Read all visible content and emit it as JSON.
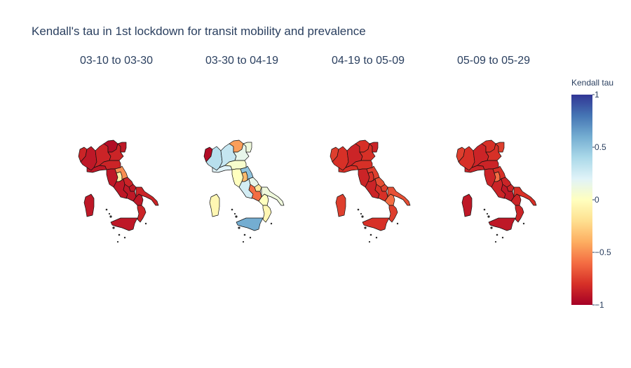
{
  "chart_data": {
    "type": "choropleth",
    "title": "Kendall's tau in 1st lockdown for transit mobility and prevalence",
    "panels": [
      {
        "label": "03-10 to 03-30",
        "regions": {
          "val_aosta": -0.85,
          "piedmont": -0.9,
          "liguria": -0.9,
          "lombardy": -0.85,
          "trentino": -0.95,
          "veneto": -0.85,
          "friuli": -0.9,
          "emilia": -0.85,
          "tuscany": -0.9,
          "umbria": -0.1,
          "marche": -0.5,
          "lazio": -0.9,
          "abruzzo": -0.85,
          "molise": -0.9,
          "campania": -0.9,
          "apulia": -0.85,
          "basilicata": -0.9,
          "calabria": -0.85,
          "sicily": -0.9,
          "sardinia": -0.9
        }
      },
      {
        "label": "03-30 to 04-19",
        "regions": {
          "val_aosta": -0.95,
          "piedmont": 0.35,
          "liguria": 0.2,
          "lombardy": 0.3,
          "trentino": -0.45,
          "veneto": 0.15,
          "friuli": 0.1,
          "emilia": 0.05,
          "tuscany": 0.0,
          "umbria": -0.35,
          "marche": 0.5,
          "lazio": 0.25,
          "abruzzo": 0.15,
          "molise": -0.15,
          "campania": -0.6,
          "apulia": 0.1,
          "basilicata": 0.0,
          "calabria": -0.05,
          "sicily": 0.6,
          "sardinia": -0.05
        }
      },
      {
        "label": "04-19 to 05-09",
        "regions": {
          "val_aosta": -0.75,
          "piedmont": -0.8,
          "liguria": -0.8,
          "lombardy": -0.85,
          "trentino": -0.8,
          "veneto": -0.8,
          "friuli": -0.85,
          "emilia": -0.8,
          "tuscany": -0.85,
          "umbria": -0.8,
          "marche": -0.75,
          "lazio": -0.85,
          "abruzzo": -0.7,
          "molise": -0.75,
          "campania": -0.8,
          "apulia": -0.7,
          "basilicata": -0.6,
          "calabria": -0.75,
          "sicily": -0.8,
          "sardinia": -0.75
        }
      },
      {
        "label": "05-09 to 05-29",
        "regions": {
          "val_aosta": -0.75,
          "piedmont": -0.8,
          "liguria": -0.85,
          "lombardy": -0.85,
          "trentino": -0.8,
          "veneto": -0.8,
          "friuli": -0.75,
          "emilia": -0.85,
          "tuscany": -0.85,
          "umbria": -0.6,
          "marche": -0.8,
          "lazio": -0.85,
          "abruzzo": -0.85,
          "molise": -0.85,
          "campania": -0.9,
          "apulia": -0.8,
          "basilicata": -0.85,
          "calabria": -0.85,
          "sicily": -0.9,
          "sardinia": -0.9
        }
      }
    ],
    "colorbar": {
      "title": "Kendall tau",
      "range": [
        -1,
        1
      ],
      "ticks": [
        1,
        0.5,
        0,
        -0.5,
        -1
      ],
      "tick_labels": [
        "1",
        "0.5",
        "0",
        "−0.5",
        "−1"
      ],
      "colorscale": [
        [
          0,
          "#a50026"
        ],
        [
          0.1,
          "#d73027"
        ],
        [
          0.2,
          "#f46d43"
        ],
        [
          0.3,
          "#fdae61"
        ],
        [
          0.4,
          "#fee090"
        ],
        [
          0.5,
          "#ffffbf"
        ],
        [
          0.6,
          "#e0f3f8"
        ],
        [
          0.7,
          "#abd9e9"
        ],
        [
          0.8,
          "#74add1"
        ],
        [
          0.9,
          "#4575b4"
        ],
        [
          1,
          "#313695"
        ]
      ]
    }
  }
}
